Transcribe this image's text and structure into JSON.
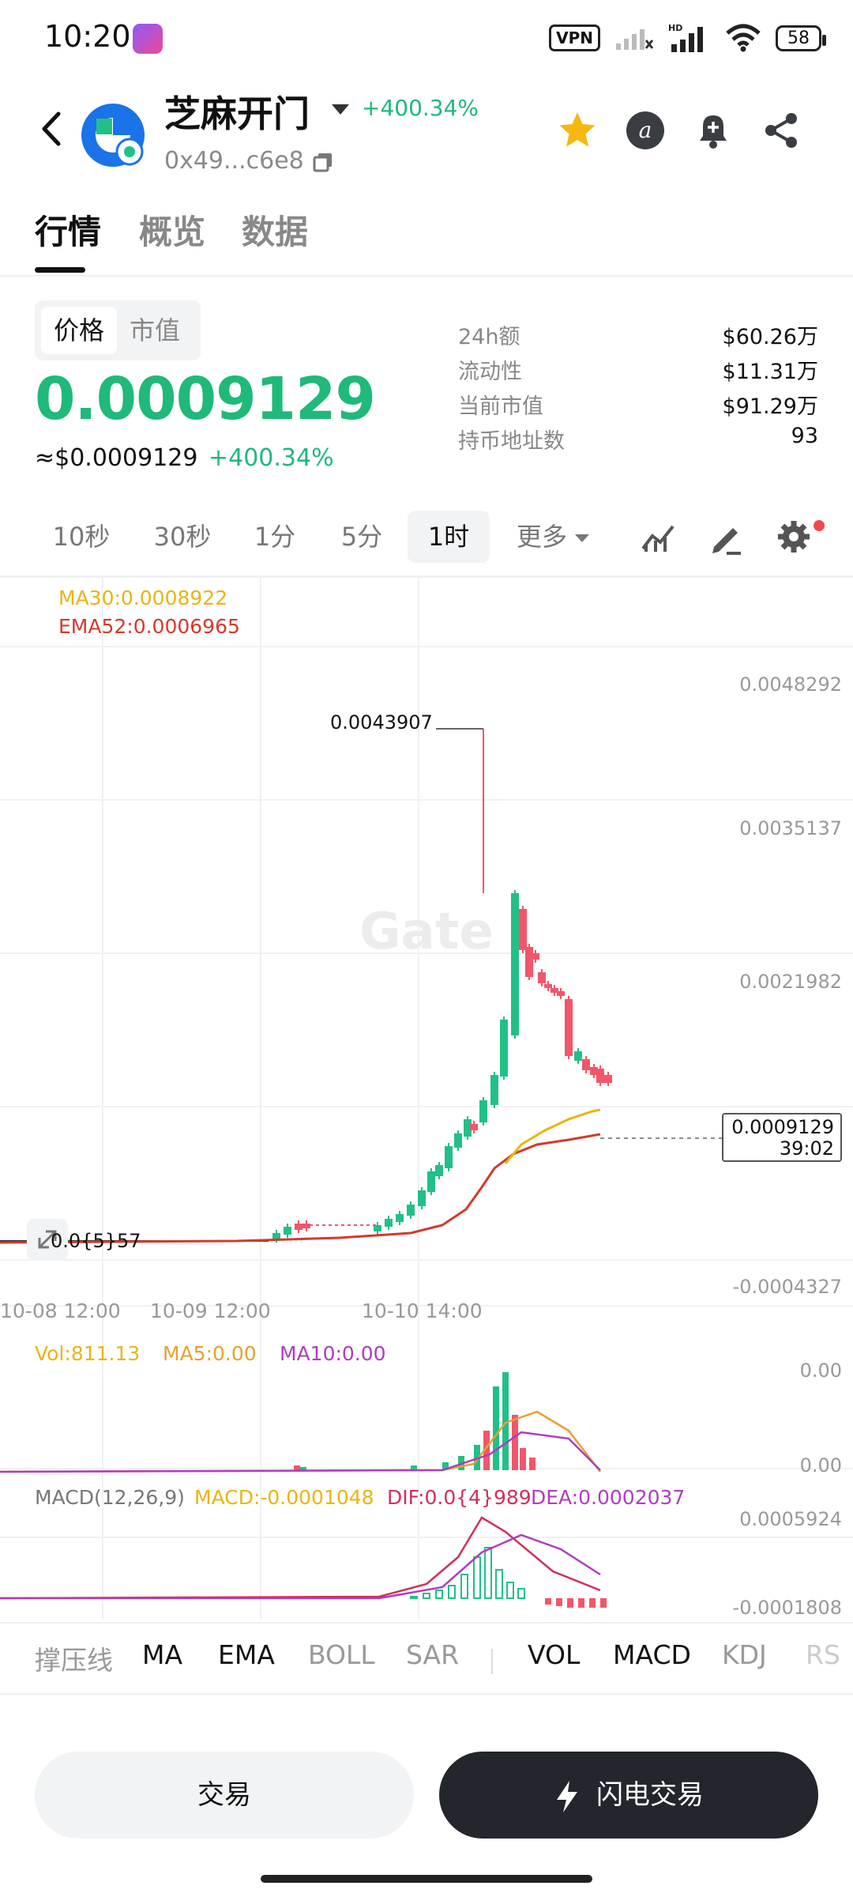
{
  "status_bar": {
    "time": "10:20",
    "vpn": "VPN",
    "network": "HD",
    "battery": "58"
  },
  "header": {
    "token_name": "芝麻开门",
    "change": "+400.34%",
    "address": "0x49...c6e8",
    "icons": [
      "back-icon",
      "star-icon",
      "at-icon",
      "bell-plus-icon",
      "share-icon"
    ]
  },
  "tabs": [
    "行情",
    "概览",
    "数据"
  ],
  "price_panel": {
    "toggle": [
      "价格",
      "市值"
    ],
    "price": "0.0009129",
    "usd_price": "≈$0.0009129",
    "usd_change": "+400.34%",
    "stats": [
      {
        "label": "24h额",
        "value": "$60.26万"
      },
      {
        "label": "流动性",
        "value": "$11.31万"
      },
      {
        "label": "当前市值",
        "value": "$91.29万"
      },
      {
        "label": "持币地址数",
        "value": "93"
      }
    ]
  },
  "intervals": {
    "items": [
      "10秒",
      "30秒",
      "1分",
      "5分",
      "1时"
    ],
    "active": "1时",
    "more": "更多"
  },
  "chart": {
    "ma30_legend": "MA30:0.0008922",
    "ema52_legend": "EMA52:0.0006965",
    "y_ticks": [
      "0.0048292",
      "0.0035137",
      "0.0021982",
      "-0.0004327"
    ],
    "x_ticks": [
      "10-08 12:00",
      "10-09 12:00",
      "10-10 14:00"
    ],
    "peak_label": "0.0043907",
    "low_label": "0.0{5}57",
    "current_price": "0.0009129",
    "countdown": "39:02",
    "vol_legend": {
      "vol": "Vol:811.13",
      "ma5": "MA5:0.00",
      "ma10": "MA10:0.00"
    },
    "vol_y_ticks": [
      "0.00",
      "0.00"
    ],
    "macd_legend": {
      "label": "MACD(12,26,9)",
      "macd": "MACD:-0.0001048",
      "dif": "DIF:0.0{4}989",
      "dea": "DEA:0.0002037"
    },
    "macd_y_ticks": [
      "0.0005924",
      "-0.0001808"
    ],
    "colors": {
      "up": "#21c087",
      "down": "#f2566a",
      "ma30": "#e8b512",
      "ema52": "#d33a2c",
      "vol_ma5": "#e8a030",
      "vol_ma10": "#b03cc0",
      "macd": "#e8b512",
      "dif": "#d0305a",
      "dea": "#b03cc0"
    }
  },
  "indicators": {
    "main": [
      "撑压线",
      "MA",
      "EMA",
      "BOLL",
      "SAR"
    ],
    "sub": [
      "VOL",
      "MACD",
      "KDJ",
      "RS"
    ]
  },
  "bottom": {
    "trade": "交易",
    "flash_trade": "闪电交易"
  }
}
